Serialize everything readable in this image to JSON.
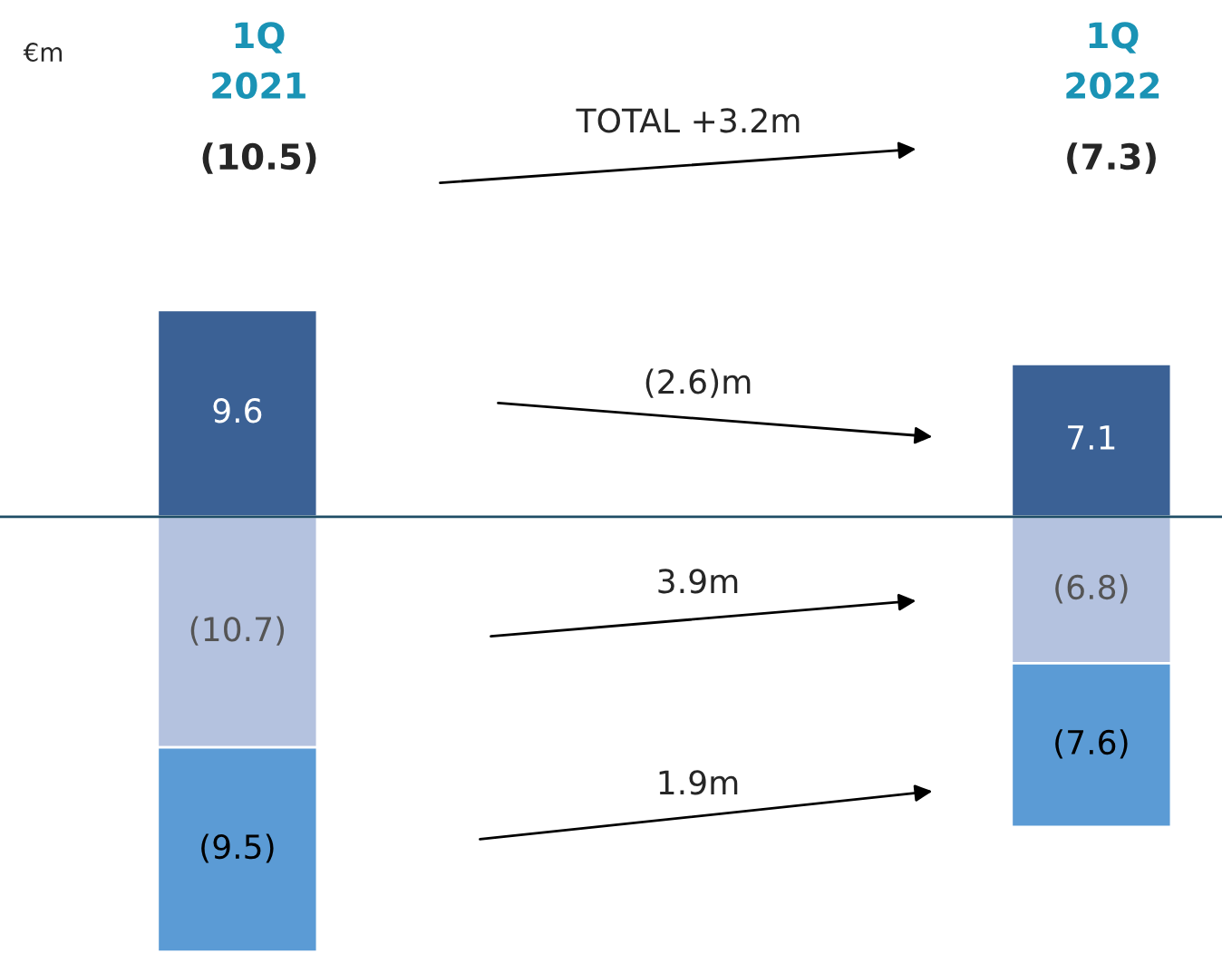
{
  "chart_data": {
    "type": "bar",
    "stacked": true,
    "ylabel": "€m",
    "categories": [
      "1Q\n2021",
      "1Q\n2022"
    ],
    "series": [
      {
        "color": "#3b6195",
        "values": [
          9.6,
          7.1
        ],
        "value_labels": [
          "9.6",
          "7.1"
        ]
      },
      {
        "color": "#b4c2df",
        "values": [
          -10.7,
          -6.8
        ],
        "value_labels": [
          "(10.7)",
          "(6.8)"
        ]
      },
      {
        "color": "#5b9bd5",
        "values": [
          -9.5,
          -7.6
        ],
        "value_labels": [
          "(9.5)",
          "(7.6)"
        ]
      }
    ],
    "annotations": [
      "(10.5)",
      "(7.3)",
      "TOTAL +3.2m",
      "(2.6)m",
      "3.9m",
      "1.9m"
    ],
    "ref_lines": [
      {
        "axis": "y",
        "value": 0,
        "color": "#1f4e66"
      }
    ],
    "ylim": [
      -20.3,
      24
    ],
    "legend": false
  }
}
